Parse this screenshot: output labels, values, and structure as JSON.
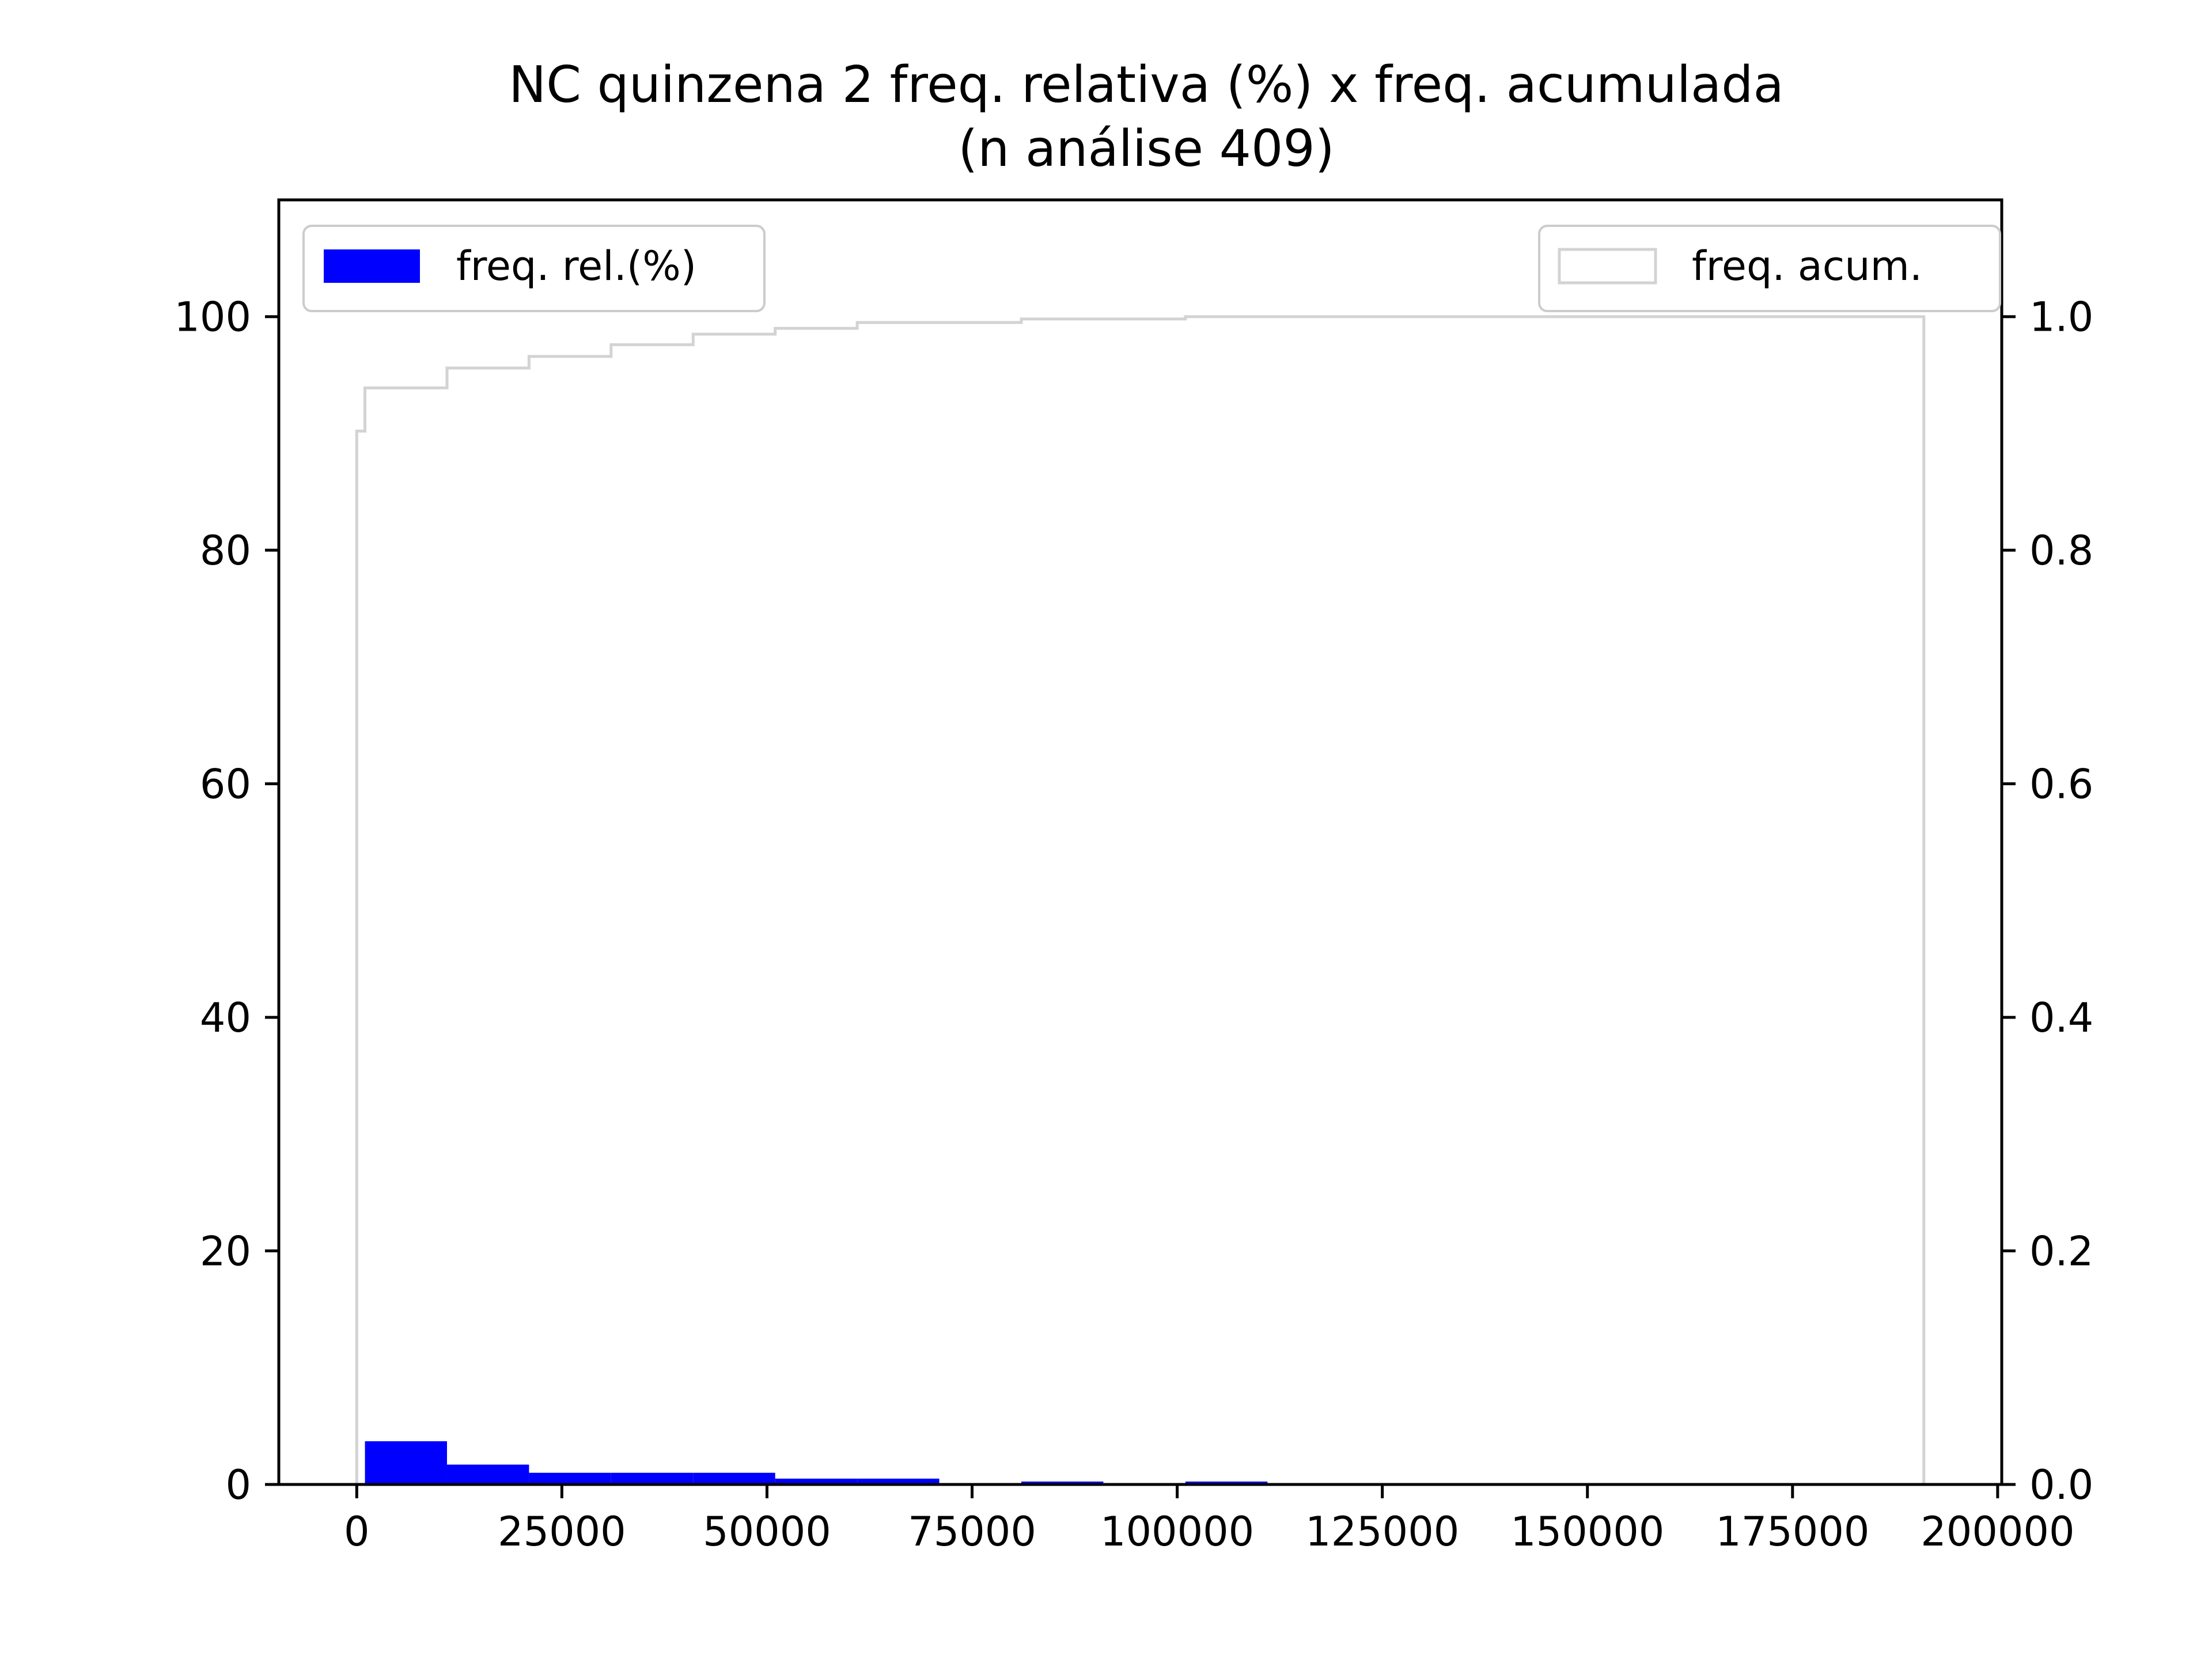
{
  "chart_data": {
    "type": "bar",
    "title": "NC quinzena 2 freq. relativa (%) x freq. acumulada",
    "subtitle": "(n análise 409)",
    "xlim": [
      -9500,
      200500
    ],
    "ylim_left": [
      0,
      110
    ],
    "ylim_right": [
      0,
      1.1
    ],
    "x_ticks": [
      0,
      25000,
      50000,
      75000,
      100000,
      125000,
      150000,
      175000,
      200000
    ],
    "x_tick_labels": [
      "0",
      "25000",
      "50000",
      "75000",
      "100000",
      "125000",
      "150000",
      "175000",
      "200000"
    ],
    "y_left_ticks": [
      0,
      20,
      40,
      60,
      80,
      100
    ],
    "y_left_tick_labels": [
      "0",
      "20",
      "40",
      "60",
      "80",
      "100"
    ],
    "y_right_ticks": [
      0,
      0.2,
      0.4,
      0.6,
      0.8,
      1.0
    ],
    "y_right_tick_labels": [
      "0.0",
      "0.2",
      "0.4",
      "0.6",
      "0.8",
      "1.0"
    ],
    "grid": false,
    "series": [
      {
        "name": "freq. rel.(%)",
        "kind": "histogram",
        "axis": "left",
        "color": "#0000ff",
        "bins": [
          {
            "x0": 1000,
            "x1": 11000,
            "value": 3.7
          },
          {
            "x0": 11000,
            "x1": 21000,
            "value": 1.7
          },
          {
            "x0": 21000,
            "x1": 31000,
            "value": 1.0
          },
          {
            "x0": 31000,
            "x1": 41000,
            "value": 1.0
          },
          {
            "x0": 41000,
            "x1": 51000,
            "value": 1.0
          },
          {
            "x0": 51000,
            "x1": 61000,
            "value": 0.5
          },
          {
            "x0": 61000,
            "x1": 71000,
            "value": 0.5
          },
          {
            "x0": 81000,
            "x1": 91000,
            "value": 0.25
          },
          {
            "x0": 101000,
            "x1": 111000,
            "value": 0.25
          }
        ]
      },
      {
        "name": "freq. acum.",
        "kind": "cumulative-step",
        "axis": "right",
        "color": "#d3d3d3",
        "points": [
          {
            "x": 0,
            "y": 0
          },
          {
            "x": 0,
            "y": 0.902
          },
          {
            "x": 1000,
            "y": 0.902
          },
          {
            "x": 1000,
            "y": 0.939
          },
          {
            "x": 11000,
            "y": 0.939
          },
          {
            "x": 11000,
            "y": 0.956
          },
          {
            "x": 21000,
            "y": 0.956
          },
          {
            "x": 21000,
            "y": 0.966
          },
          {
            "x": 31000,
            "y": 0.966
          },
          {
            "x": 31000,
            "y": 0.976
          },
          {
            "x": 41000,
            "y": 0.976
          },
          {
            "x": 41000,
            "y": 0.985
          },
          {
            "x": 51000,
            "y": 0.985
          },
          {
            "x": 51000,
            "y": 0.99
          },
          {
            "x": 61000,
            "y": 0.99
          },
          {
            "x": 61000,
            "y": 0.995
          },
          {
            "x": 81000,
            "y": 0.995
          },
          {
            "x": 81000,
            "y": 0.998
          },
          {
            "x": 101000,
            "y": 0.998
          },
          {
            "x": 101000,
            "y": 1.0
          },
          {
            "x": 191000,
            "y": 1.0
          },
          {
            "x": 191000,
            "y": 0
          }
        ]
      }
    ],
    "legends": [
      {
        "label": "freq. rel.(%)",
        "placement": "upper-left",
        "style": "filled",
        "color": "#0000ff"
      },
      {
        "label": "freq. acum.",
        "placement": "upper-right",
        "style": "outline",
        "color": "#d3d3d3"
      }
    ]
  }
}
